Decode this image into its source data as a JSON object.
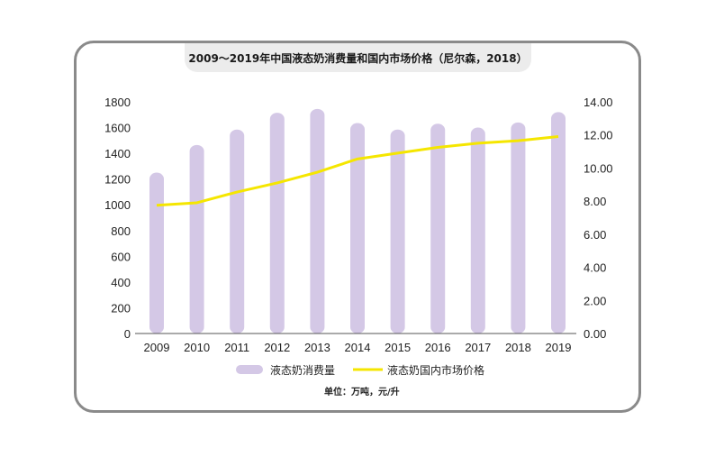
{
  "chart_data": {
    "type": "bar+line",
    "title": "2009～2019年中国液态奶消费量和国内市场价格（尼尔森，2018）",
    "categories": [
      "2009",
      "2010",
      "2011",
      "2012",
      "2013",
      "2014",
      "2015",
      "2016",
      "2017",
      "2018",
      "2019"
    ],
    "series": [
      {
        "name": "液态奶消费量",
        "type": "bar",
        "axis": "left",
        "color": "#d4c8e6",
        "values": [
          1250,
          1465,
          1585,
          1715,
          1745,
          1635,
          1585,
          1630,
          1600,
          1640,
          1720
        ]
      },
      {
        "name": "液态奶国内市场价格",
        "type": "line",
        "axis": "right",
        "color": "#f5e600",
        "values": [
          7.75,
          7.9,
          8.55,
          9.1,
          9.75,
          10.55,
          10.9,
          11.25,
          11.5,
          11.65,
          11.9
        ]
      }
    ],
    "y_left": {
      "min": 0,
      "max": 1800,
      "ticks": [
        "0",
        "200",
        "400",
        "600",
        "800",
        "1000",
        "1200",
        "1400",
        "1600",
        "1800"
      ]
    },
    "y_right": {
      "min": 0,
      "max": 14,
      "ticks": [
        "0.00",
        "2.00",
        "4.00",
        "6.00",
        "8.00",
        "10.00",
        "12.00",
        "14.00"
      ]
    },
    "legend": {
      "bar_label": "液态奶消费量",
      "line_label": "液态奶国内市场价格"
    },
    "unit": "单位：万吨，元/升"
  }
}
